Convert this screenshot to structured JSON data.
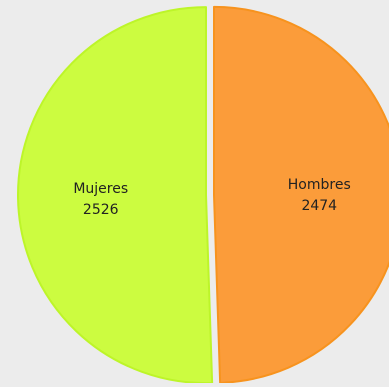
{
  "chart_data": {
    "type": "pie",
    "title": "",
    "slices": [
      {
        "label": "Hombres",
        "value": 2474,
        "color": "#fb9c3a",
        "stroke": "#f7931e"
      },
      {
        "label": "Mujeres",
        "value": 2526,
        "color": "#ccfc40",
        "stroke": "#bdf529"
      }
    ],
    "start_angle_deg": 0,
    "direction": "clockwise",
    "exploded": true,
    "legend": "none"
  },
  "colors": {
    "background": "#ececec",
    "label_text": "#222222"
  }
}
